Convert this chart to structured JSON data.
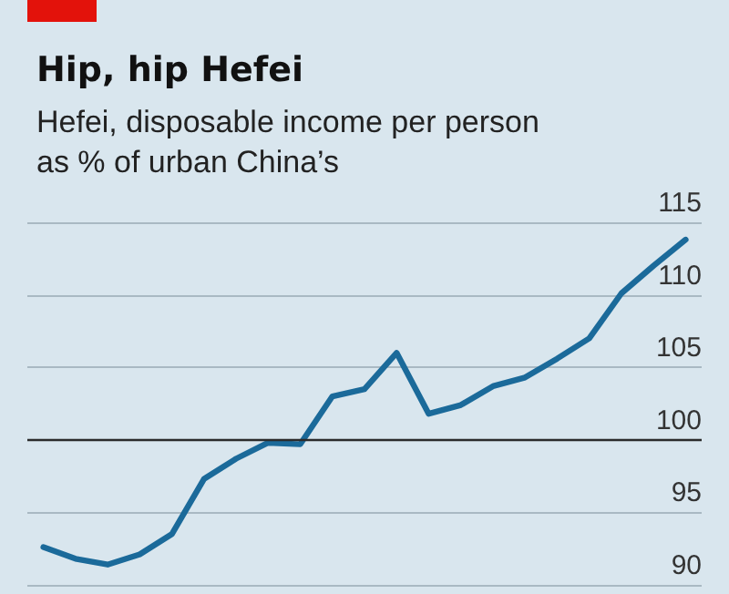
{
  "chart_data": {
    "type": "line",
    "title": "Hip, hip Hefei",
    "subtitle": "Hefei, disposable income per person\nas % of urban China’s",
    "categories": [
      null,
      null,
      null,
      null,
      null,
      null,
      null,
      null,
      null,
      null,
      null,
      null,
      null,
      null,
      null,
      null,
      null,
      null,
      null,
      null,
      null
    ],
    "series": [
      {
        "color": "#1b6a9a",
        "values": [
          92.6,
          91.8,
          91.4,
          92.1,
          93.5,
          97.3,
          98.7,
          99.8,
          99.7,
          103.0,
          103.5,
          106.0,
          101.8,
          102.4,
          103.7,
          104.3,
          105.6,
          107.0,
          110.1,
          112.0,
          113.8
        ]
      }
    ],
    "ylim": [
      90,
      115
    ],
    "yticks": [
      90,
      95,
      100,
      105,
      110,
      115
    ],
    "grid": "y",
    "marker": "none",
    "line_style": "solid",
    "ref_lines": [
      {
        "axis": "y",
        "value": 100,
        "color": "#2b2b2b"
      }
    ]
  }
}
